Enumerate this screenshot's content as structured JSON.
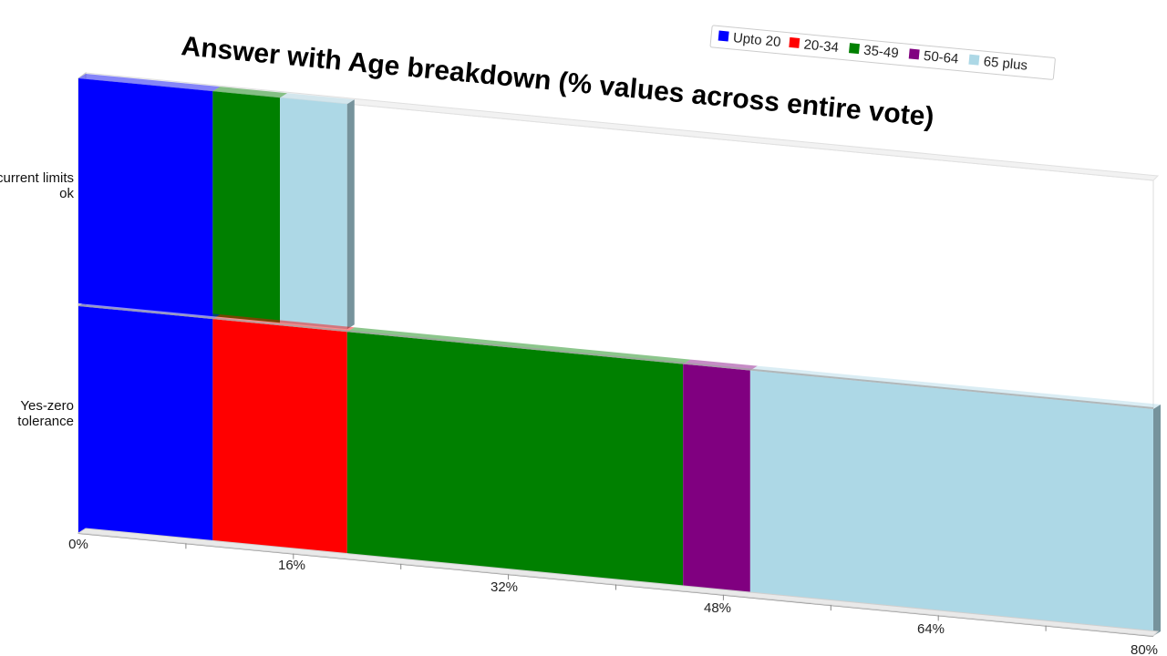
{
  "chart_data": {
    "type": "bar",
    "orientation": "horizontal",
    "stacked": true,
    "three_d": true,
    "title": "Answer with Age breakdown (% values across entire vote)",
    "xlabel": "",
    "ylabel": "",
    "categories": [
      "No-current limits ok",
      "Yes-zero tolerance"
    ],
    "xlim": [
      0,
      80
    ],
    "x_ticks": [
      "0%",
      "16%",
      "32%",
      "48%",
      "64%",
      "80%"
    ],
    "legend_position": "top-right",
    "series": [
      {
        "name": "Upto 20",
        "color": "#0000ff",
        "values": [
          10,
          10
        ]
      },
      {
        "name": "20-34",
        "color": "#ff0000",
        "values": [
          0,
          10
        ]
      },
      {
        "name": "35-49",
        "color": "#008000",
        "values": [
          5,
          25
        ]
      },
      {
        "name": "50-64",
        "color": "#800080",
        "values": [
          0,
          5
        ]
      },
      {
        "name": "65 plus",
        "color": "#add8e6",
        "values": [
          5,
          30
        ]
      }
    ]
  }
}
